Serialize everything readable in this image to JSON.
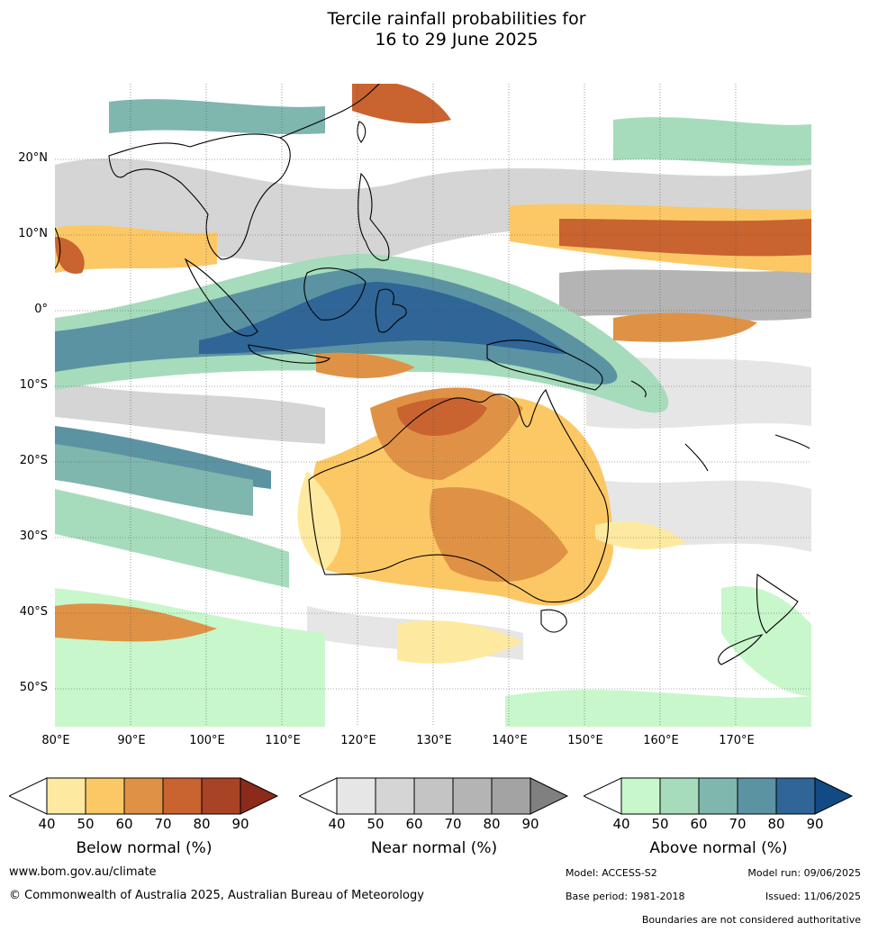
{
  "title_line1": "Tercile rainfall probabilities for",
  "title_line2": "16 to 29 June 2025",
  "map": {
    "lat_labels": [
      "20°N",
      "10°N",
      "0°",
      "10°S",
      "20°S",
      "30°S",
      "40°S",
      "50°S"
    ],
    "lon_labels": [
      "80°E",
      "90°E",
      "100°E",
      "110°E",
      "120°E",
      "130°E",
      "140°E",
      "150°E",
      "160°E",
      "170°E"
    ]
  },
  "colorbars": [
    {
      "title": "Below normal (%)",
      "ticks": [
        "40",
        "50",
        "60",
        "70",
        "80",
        "90"
      ],
      "colors": [
        "#ffffff",
        "#fdeaa0",
        "#fcc865",
        "#df9245",
        "#c9632f",
        "#a84325",
        "#8c2a1b"
      ]
    },
    {
      "title": "Near normal (%)",
      "ticks": [
        "40",
        "50",
        "60",
        "70",
        "80",
        "90"
      ],
      "colors": [
        "#ffffff",
        "#e6e6e6",
        "#d5d5d5",
        "#c4c4c4",
        "#b4b4b4",
        "#a3a3a3",
        "#808080"
      ]
    },
    {
      "title": "Above normal (%)",
      "ticks": [
        "40",
        "50",
        "60",
        "70",
        "80",
        "90"
      ],
      "colors": [
        "#ffffff",
        "#c8f7cb",
        "#a6dcbb",
        "#7fb6ae",
        "#5b93a3",
        "#2f6597",
        "#124b84"
      ]
    }
  ],
  "footer": {
    "website": "www.bom.gov.au/climate",
    "copyright": "© Commonwealth of Australia 2025, Australian Bureau of Meteorology",
    "model": "Model: ACCESS-S2",
    "model_run": "Model run: 09/06/2025",
    "base_period": "Base period: 1981-2018",
    "issued": "Issued: 11/06/2025",
    "disclaimer": "Boundaries are not considered authoritative"
  }
}
